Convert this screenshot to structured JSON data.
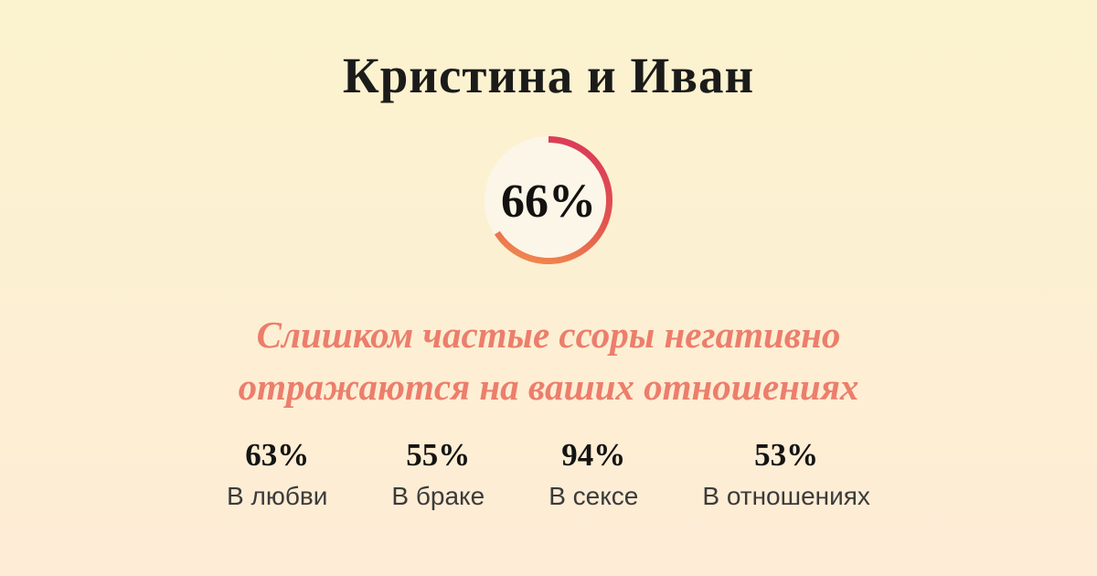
{
  "card": {
    "title": "Кристина и Иван"
  },
  "gauge": {
    "percent": 66,
    "label": "66%"
  },
  "message": {
    "lines": [
      "Слишком частые ссоры негативно",
      "отражаются на ваших отношениях"
    ]
  },
  "stats": [
    {
      "value": "63%",
      "label": "В любви"
    },
    {
      "value": "55%",
      "label": "В браке"
    },
    {
      "value": "94%",
      "label": "В сексе"
    },
    {
      "value": "53%",
      "label": "В отношениях"
    }
  ],
  "colors": {
    "bg_top": "#FBF3CF",
    "bg_bottom": "#FEECD6",
    "disc": "#FCF6E8",
    "ring_start": "#DB3D57",
    "ring_mid": "#E25450",
    "ring_end": "#F0854E",
    "title": "#1B1B1A",
    "accent_text": "#EC7E6C",
    "stat_value": "#151413",
    "stat_label": "#3B3B3B"
  },
  "chart_data": [
    {
      "type": "pie",
      "values": [
        66,
        34
      ],
      "categories": [
        "66%",
        ""
      ],
      "annotations": [
        "66%"
      ],
      "legend_position": "none"
    },
    {
      "type": "table",
      "categories": [
        "В любви",
        "В браке",
        "В сексе",
        "В отношениях"
      ],
      "values": [
        63,
        55,
        94,
        53
      ]
    }
  ]
}
